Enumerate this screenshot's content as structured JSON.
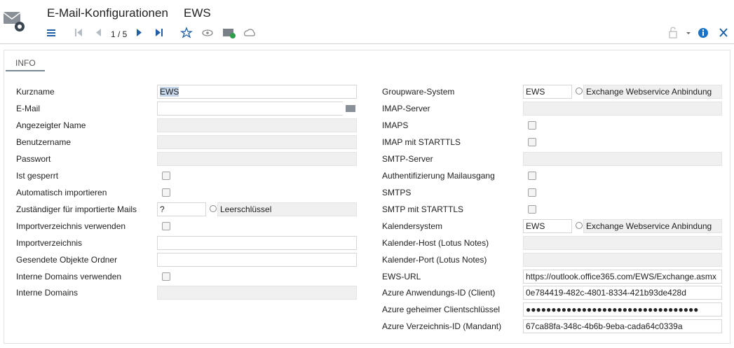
{
  "header": {
    "title": "E-Mail-Konfigurationen",
    "subtitle": "EWS",
    "pager": "1 / 5"
  },
  "tab": "INFO",
  "left_fields": [
    {
      "label": "Kurzname",
      "value": "EWS"
    },
    {
      "label": "E-Mail"
    },
    {
      "label": "Angezeigter Name"
    },
    {
      "label": "Benutzername"
    },
    {
      "label": "Passwort"
    },
    {
      "label": "Ist gesperrt"
    },
    {
      "label": "Automatisch importieren"
    },
    {
      "label": "Zuständiger für importierte Mails",
      "value": "?",
      "description": "Leerschlüssel"
    },
    {
      "label": "Importverzeichnis verwenden"
    },
    {
      "label": "Importverzeichnis"
    },
    {
      "label": "Gesendete Objekte Ordner"
    },
    {
      "label": "Interne Domains verwenden"
    },
    {
      "label": "Interne Domains"
    }
  ],
  "right_fields": [
    {
      "label": "Groupware-System",
      "value": "EWS",
      "description": "Exchange Webservice Anbindung"
    },
    {
      "label": "IMAP-Server"
    },
    {
      "label": "IMAPS"
    },
    {
      "label": "IMAP mit STARTTLS"
    },
    {
      "label": "SMTP-Server"
    },
    {
      "label": "Authentifizierung Mailausgang"
    },
    {
      "label": "SMTPS"
    },
    {
      "label": "SMTP mit STARTTLS"
    },
    {
      "label": "Kalendersystem",
      "value": "EWS",
      "description": "Exchange Webservice Anbindung"
    },
    {
      "label": "Kalender-Host (Lotus Notes)"
    },
    {
      "label": "Kalender-Port (Lotus Notes)"
    },
    {
      "label": "EWS-URL",
      "value": "https://outlook.office365.com/EWS/Exchange.asmx"
    },
    {
      "label": "Azure Anwendungs-ID (Client)",
      "value": "0e784419-482c-4801-8334-421b93de428d"
    },
    {
      "label": "Azure geheimer Clientschlüssel",
      "value": "●●●●●●●●●●●●●●●●●●●●●●●●●●●●●●●●●●"
    },
    {
      "label": "Azure Verzeichnis-ID (Mandant)",
      "value": "67ca88fa-348c-4b6b-9eba-cada64c0339a"
    }
  ]
}
